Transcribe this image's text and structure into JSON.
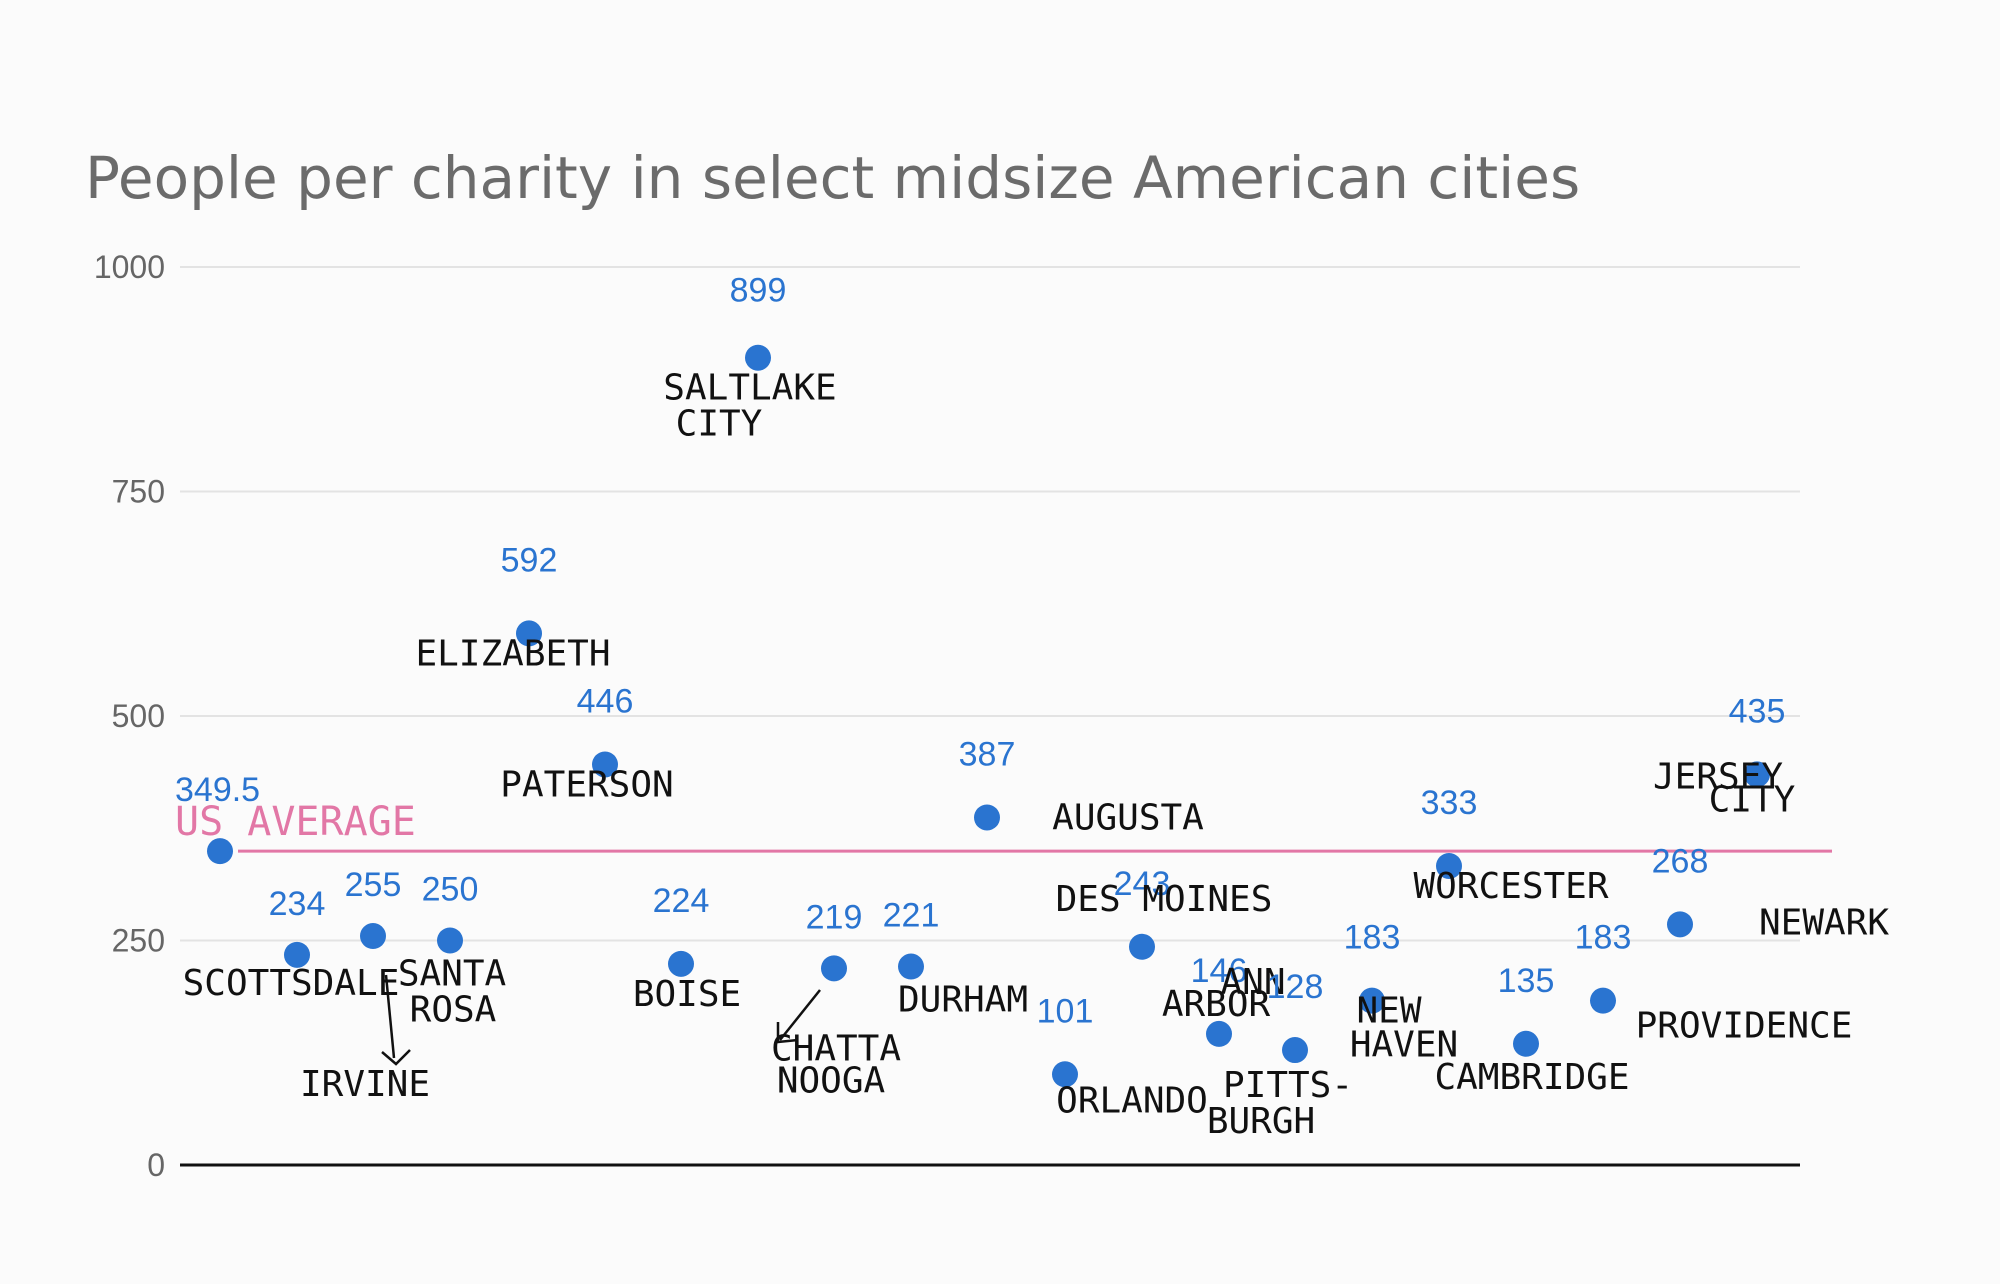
{
  "chart_data": {
    "type": "scatter",
    "title": "People per charity in select midsize American cities",
    "xlabel": "",
    "ylabel": "",
    "ylim": [
      0,
      1000
    ],
    "yticks": [
      "0",
      "250",
      "500",
      "750",
      "1000"
    ],
    "grid": true,
    "legend": "none",
    "reference_line": {
      "label": "US AVERAGE",
      "value": 349.5,
      "value_label": "349.5"
    },
    "points": [
      {
        "city": "SCOTTSDALE",
        "label": "SCOTTSDALE",
        "value": 234,
        "value_label": "234"
      },
      {
        "city": "IRVINE",
        "label": "IRVINE",
        "value": 255,
        "value_label": "255"
      },
      {
        "city": "SANTA ROSA",
        "label": "SANTA ROSA",
        "value": 250,
        "value_label": "250"
      },
      {
        "city": "ELIZABETH",
        "label": "ELIZABETH",
        "value": 592,
        "value_label": "592"
      },
      {
        "city": "PATERSON",
        "label": "PATERSON",
        "value": 446,
        "value_label": "446"
      },
      {
        "city": "BOISE",
        "label": "BOISE",
        "value": 224,
        "value_label": "224"
      },
      {
        "city": "SALT LAKE CITY",
        "label": "SALTLAKE CITY",
        "value": 899,
        "value_label": "899"
      },
      {
        "city": "CHATTANOOGA",
        "label": "CHATTA NOOGA",
        "value": 219,
        "value_label": "219"
      },
      {
        "city": "DURHAM",
        "label": "DURHAM",
        "value": 221,
        "value_label": "221"
      },
      {
        "city": "AUGUSTA",
        "label": "AUGUSTA",
        "value": 387,
        "value_label": "387"
      },
      {
        "city": "ORLANDO",
        "label": "ORLANDO",
        "value": 101,
        "value_label": "101"
      },
      {
        "city": "DES MOINES",
        "label": "DES MOINES",
        "value": 243,
        "value_label": "243"
      },
      {
        "city": "ANN ARBOR",
        "label": "ANN ARBOR",
        "value": 146,
        "value_label": "146"
      },
      {
        "city": "PITTSBURGH",
        "label": "PITTS- BURGH",
        "value": 128,
        "value_label": "128"
      },
      {
        "city": "NEW HAVEN",
        "label": "NEW HAVEN",
        "value": 183,
        "value_label": "183"
      },
      {
        "city": "WORCESTER",
        "label": "WORCESTER",
        "value": 333,
        "value_label": "333"
      },
      {
        "city": "CAMBRIDGE",
        "label": "CAMBRIDGE",
        "value": 135,
        "value_label": "135"
      },
      {
        "city": "PROVIDENCE",
        "label": "PROVIDENCE",
        "value": 183,
        "value_label": "183"
      },
      {
        "city": "NEWARK",
        "label": "NEWARK",
        "value": 268,
        "value_label": "268"
      },
      {
        "city": "JERSEY CITY",
        "label": "JERSEY CITY",
        "value": 435,
        "value_label": "435"
      }
    ]
  }
}
